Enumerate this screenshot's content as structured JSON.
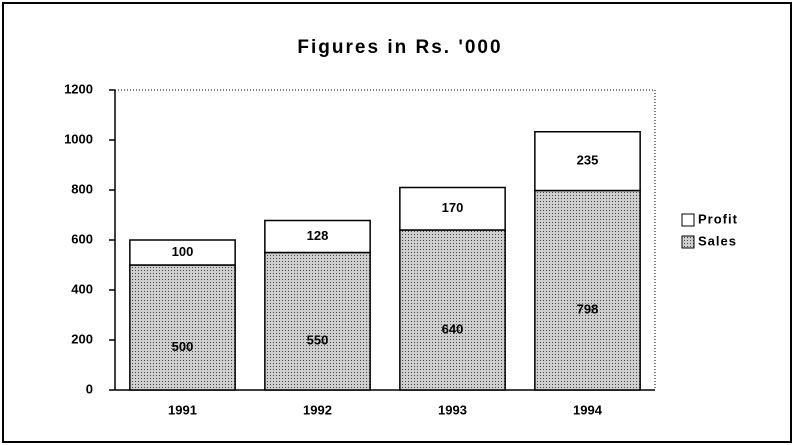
{
  "chart_data": {
    "type": "stacked_bar",
    "title": "Figures in Rs. '000",
    "categories": [
      "1991",
      "1992",
      "1993",
      "1994"
    ],
    "series": [
      {
        "name": "Sales",
        "color": "#b8b8b8",
        "values": [
          500,
          550,
          640,
          798
        ]
      },
      {
        "name": "Profit",
        "color": "#ffffff",
        "values": [
          100,
          128,
          170,
          235
        ]
      }
    ],
    "ylim": [
      0,
      1200
    ],
    "yticks": [
      0,
      200,
      400,
      600,
      800,
      1000,
      1200
    ],
    "grid": false,
    "legend": "right"
  }
}
